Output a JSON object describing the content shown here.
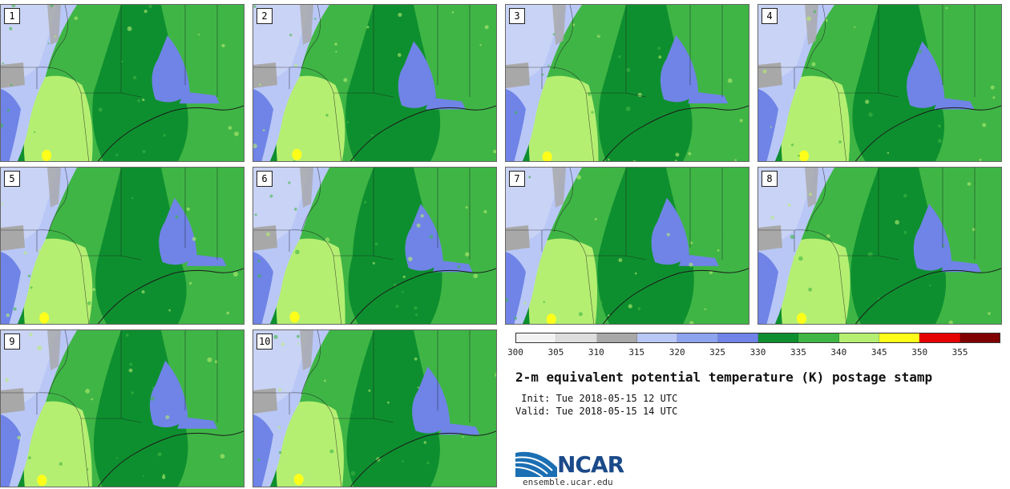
{
  "figure": {
    "title": "2-m equivalent potential temperature (K) postage stamp",
    "init_line": " Init: Tue 2018-05-15 12 UTC",
    "valid_line": "Valid: Tue 2018-05-15 14 UTC"
  },
  "members": [
    "1",
    "2",
    "3",
    "4",
    "5",
    "6",
    "7",
    "8",
    "9",
    "10"
  ],
  "colorbar": {
    "unit": "K",
    "ticks": [
      "300",
      "305",
      "310",
      "315",
      "320",
      "325",
      "330",
      "335",
      "340",
      "345",
      "350",
      "355"
    ],
    "colors": [
      "#f2f2f2",
      "#dddddd",
      "#a8a8a8",
      "#b9c7f7",
      "#8ea3ee",
      "#6f84e6",
      "#0e8f2f",
      "#3fb545",
      "#b5ef72",
      "#ffff1a",
      "#e60000",
      "#800000"
    ]
  },
  "colors": {
    "map_outline": "#1a1a1a",
    "dark_green": "#0e8f2f",
    "mid_green": "#3fb545",
    "light_green": "#b5ef72",
    "blue": "#6f84e6",
    "light_blue": "#b9c7f7",
    "gray": "#a8a8a8",
    "yellow": "#ffff1a"
  },
  "logo": {
    "name": "NCAR",
    "url": "ensemble.ucar.edu"
  }
}
